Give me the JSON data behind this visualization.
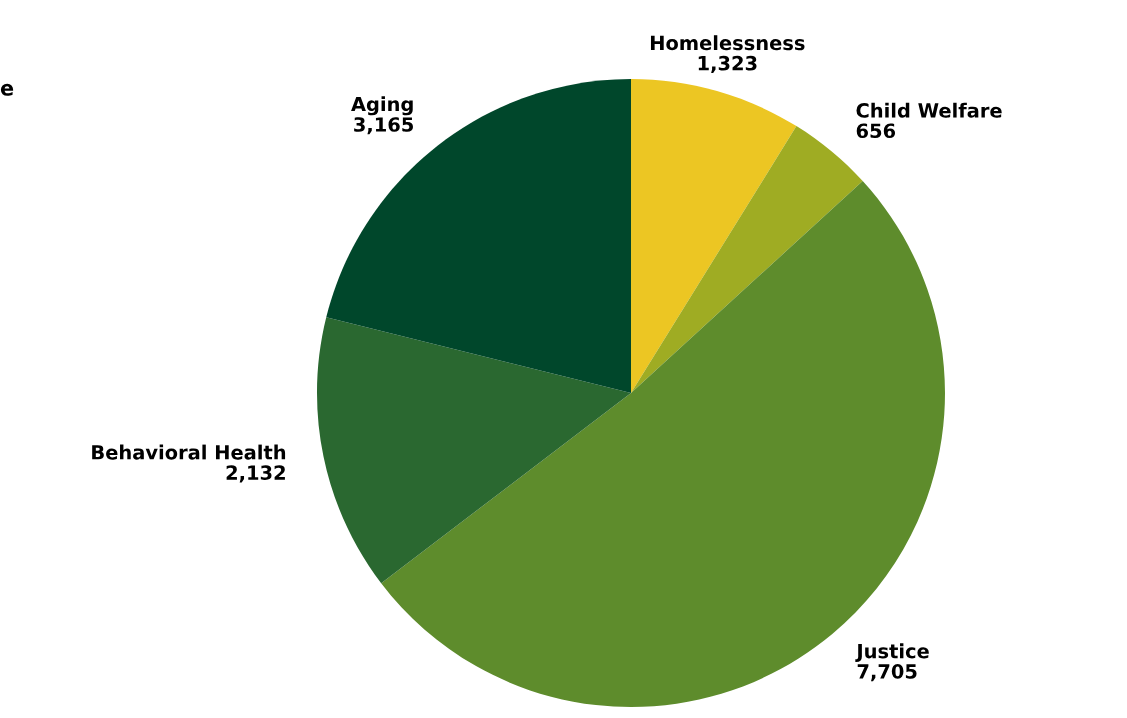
{
  "chart_data": {
    "type": "pie",
    "categories": [
      "Homelessness",
      "Child Welfare",
      "Justice",
      "Behavioral Health",
      "Aging"
    ],
    "values": [
      1323,
      656,
      7705,
      2132,
      3165
    ],
    "value_labels": [
      "1,323",
      "656",
      "7,705",
      "2,132",
      "3,165"
    ],
    "colors": [
      "#ecc623",
      "#9fac23",
      "#5e8c2c",
      "#2a6830",
      "#00472b"
    ],
    "annotations": [
      "e"
    ],
    "legend": false
  }
}
